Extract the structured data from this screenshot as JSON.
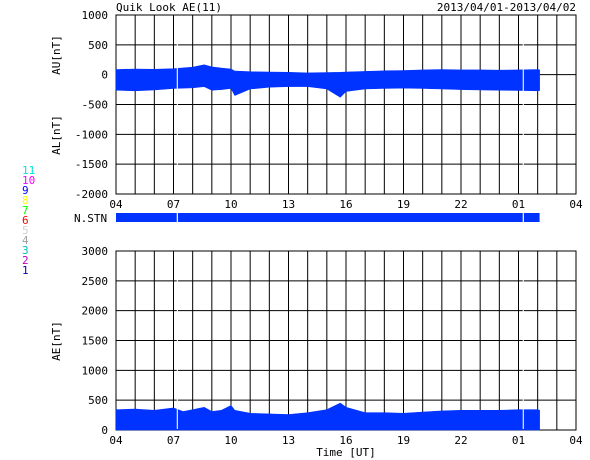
{
  "header": {
    "title": "Quik Look AE(11)",
    "date_range": "2013/04/01-2013/04/02"
  },
  "legend": {
    "items": [
      {
        "label": "11",
        "color": "#00e0e0"
      },
      {
        "label": "10",
        "color": "#ff00ff"
      },
      {
        "label": "9",
        "color": "#0000ff"
      },
      {
        "label": "8",
        "color": "#ffff00"
      },
      {
        "label": "7",
        "color": "#00ff00"
      },
      {
        "label": "6",
        "color": "#ff0000"
      },
      {
        "label": "5",
        "color": "#d0d0d0"
      },
      {
        "label": "4",
        "color": "#a0a0a0"
      },
      {
        "label": "3",
        "color": "#00c0c0"
      },
      {
        "label": "2",
        "color": "#c000c0"
      },
      {
        "label": "1",
        "color": "#0000c0"
      }
    ]
  },
  "colors": {
    "fill": "#0033ff",
    "grid": "#000000"
  },
  "chart_data": [
    {
      "type": "area",
      "ylabel_upper": "AU[nT]",
      "ylabel_lower": "AL[nT]",
      "ylim": [
        -2000,
        1000
      ],
      "yticks": [
        1000,
        500,
        0,
        -500,
        -1000,
        -1500,
        -2000
      ],
      "xlim": [
        0,
        24
      ],
      "xticks": [
        "04",
        "07",
        "10",
        "13",
        "16",
        "19",
        "22",
        "01",
        "04"
      ],
      "grid": true,
      "data_end_x": 22.1,
      "gaps_x": [
        3.2,
        21.25
      ],
      "x": [
        0,
        1,
        2,
        3,
        4,
        4.6,
        5,
        5.5,
        6,
        6.2,
        7,
        8,
        9,
        10,
        11,
        11.7,
        12,
        13,
        14,
        15,
        16,
        17,
        18,
        19,
        20,
        21,
        22,
        22.1
      ],
      "series": [
        {
          "values": [
            85,
            95,
            90,
            100,
            125,
            165,
            130,
            110,
            95,
            60,
            50,
            45,
            40,
            30,
            35,
            40,
            45,
            55,
            65,
            70,
            80,
            85,
            80,
            80,
            75,
            80,
            85,
            80
          ]
        },
        {
          "values": [
            -260,
            -270,
            -255,
            -230,
            -220,
            -200,
            -260,
            -250,
            -230,
            -350,
            -240,
            -210,
            -200,
            -200,
            -240,
            -380,
            -280,
            -240,
            -230,
            -225,
            -230,
            -240,
            -250,
            -255,
            -260,
            -265,
            -270,
            -265
          ]
        }
      ]
    },
    {
      "type": "bar",
      "ylabel": "N.STN",
      "xlim": [
        0,
        24
      ],
      "data_end_x": 22.1,
      "gaps_x": [
        3.2,
        21.25
      ]
    },
    {
      "type": "area",
      "xlabel": "Time [UT]",
      "ylabel": "AE[nT]",
      "ylim": [
        0,
        3000
      ],
      "yticks": [
        3000,
        2500,
        2000,
        1500,
        1000,
        500,
        0
      ],
      "xlim": [
        0,
        24
      ],
      "xticks": [
        "04",
        "07",
        "10",
        "13",
        "16",
        "19",
        "22",
        "01",
        "04"
      ],
      "grid": true,
      "data_end_x": 22.1,
      "gaps_x": [
        3.2,
        21.25
      ],
      "x": [
        0,
        1,
        2,
        3,
        3.5,
        4,
        4.6,
        5,
        5.5,
        6,
        6.2,
        7,
        8,
        9,
        10,
        11,
        11.7,
        12,
        13,
        14,
        15,
        16,
        17,
        18,
        19,
        20,
        21,
        22,
        22.1
      ],
      "values": [
        340,
        350,
        330,
        370,
        310,
        340,
        380,
        310,
        330,
        410,
        330,
        280,
        270,
        260,
        290,
        340,
        450,
        380,
        290,
        290,
        280,
        300,
        320,
        330,
        330,
        330,
        340,
        340,
        330
      ]
    }
  ]
}
